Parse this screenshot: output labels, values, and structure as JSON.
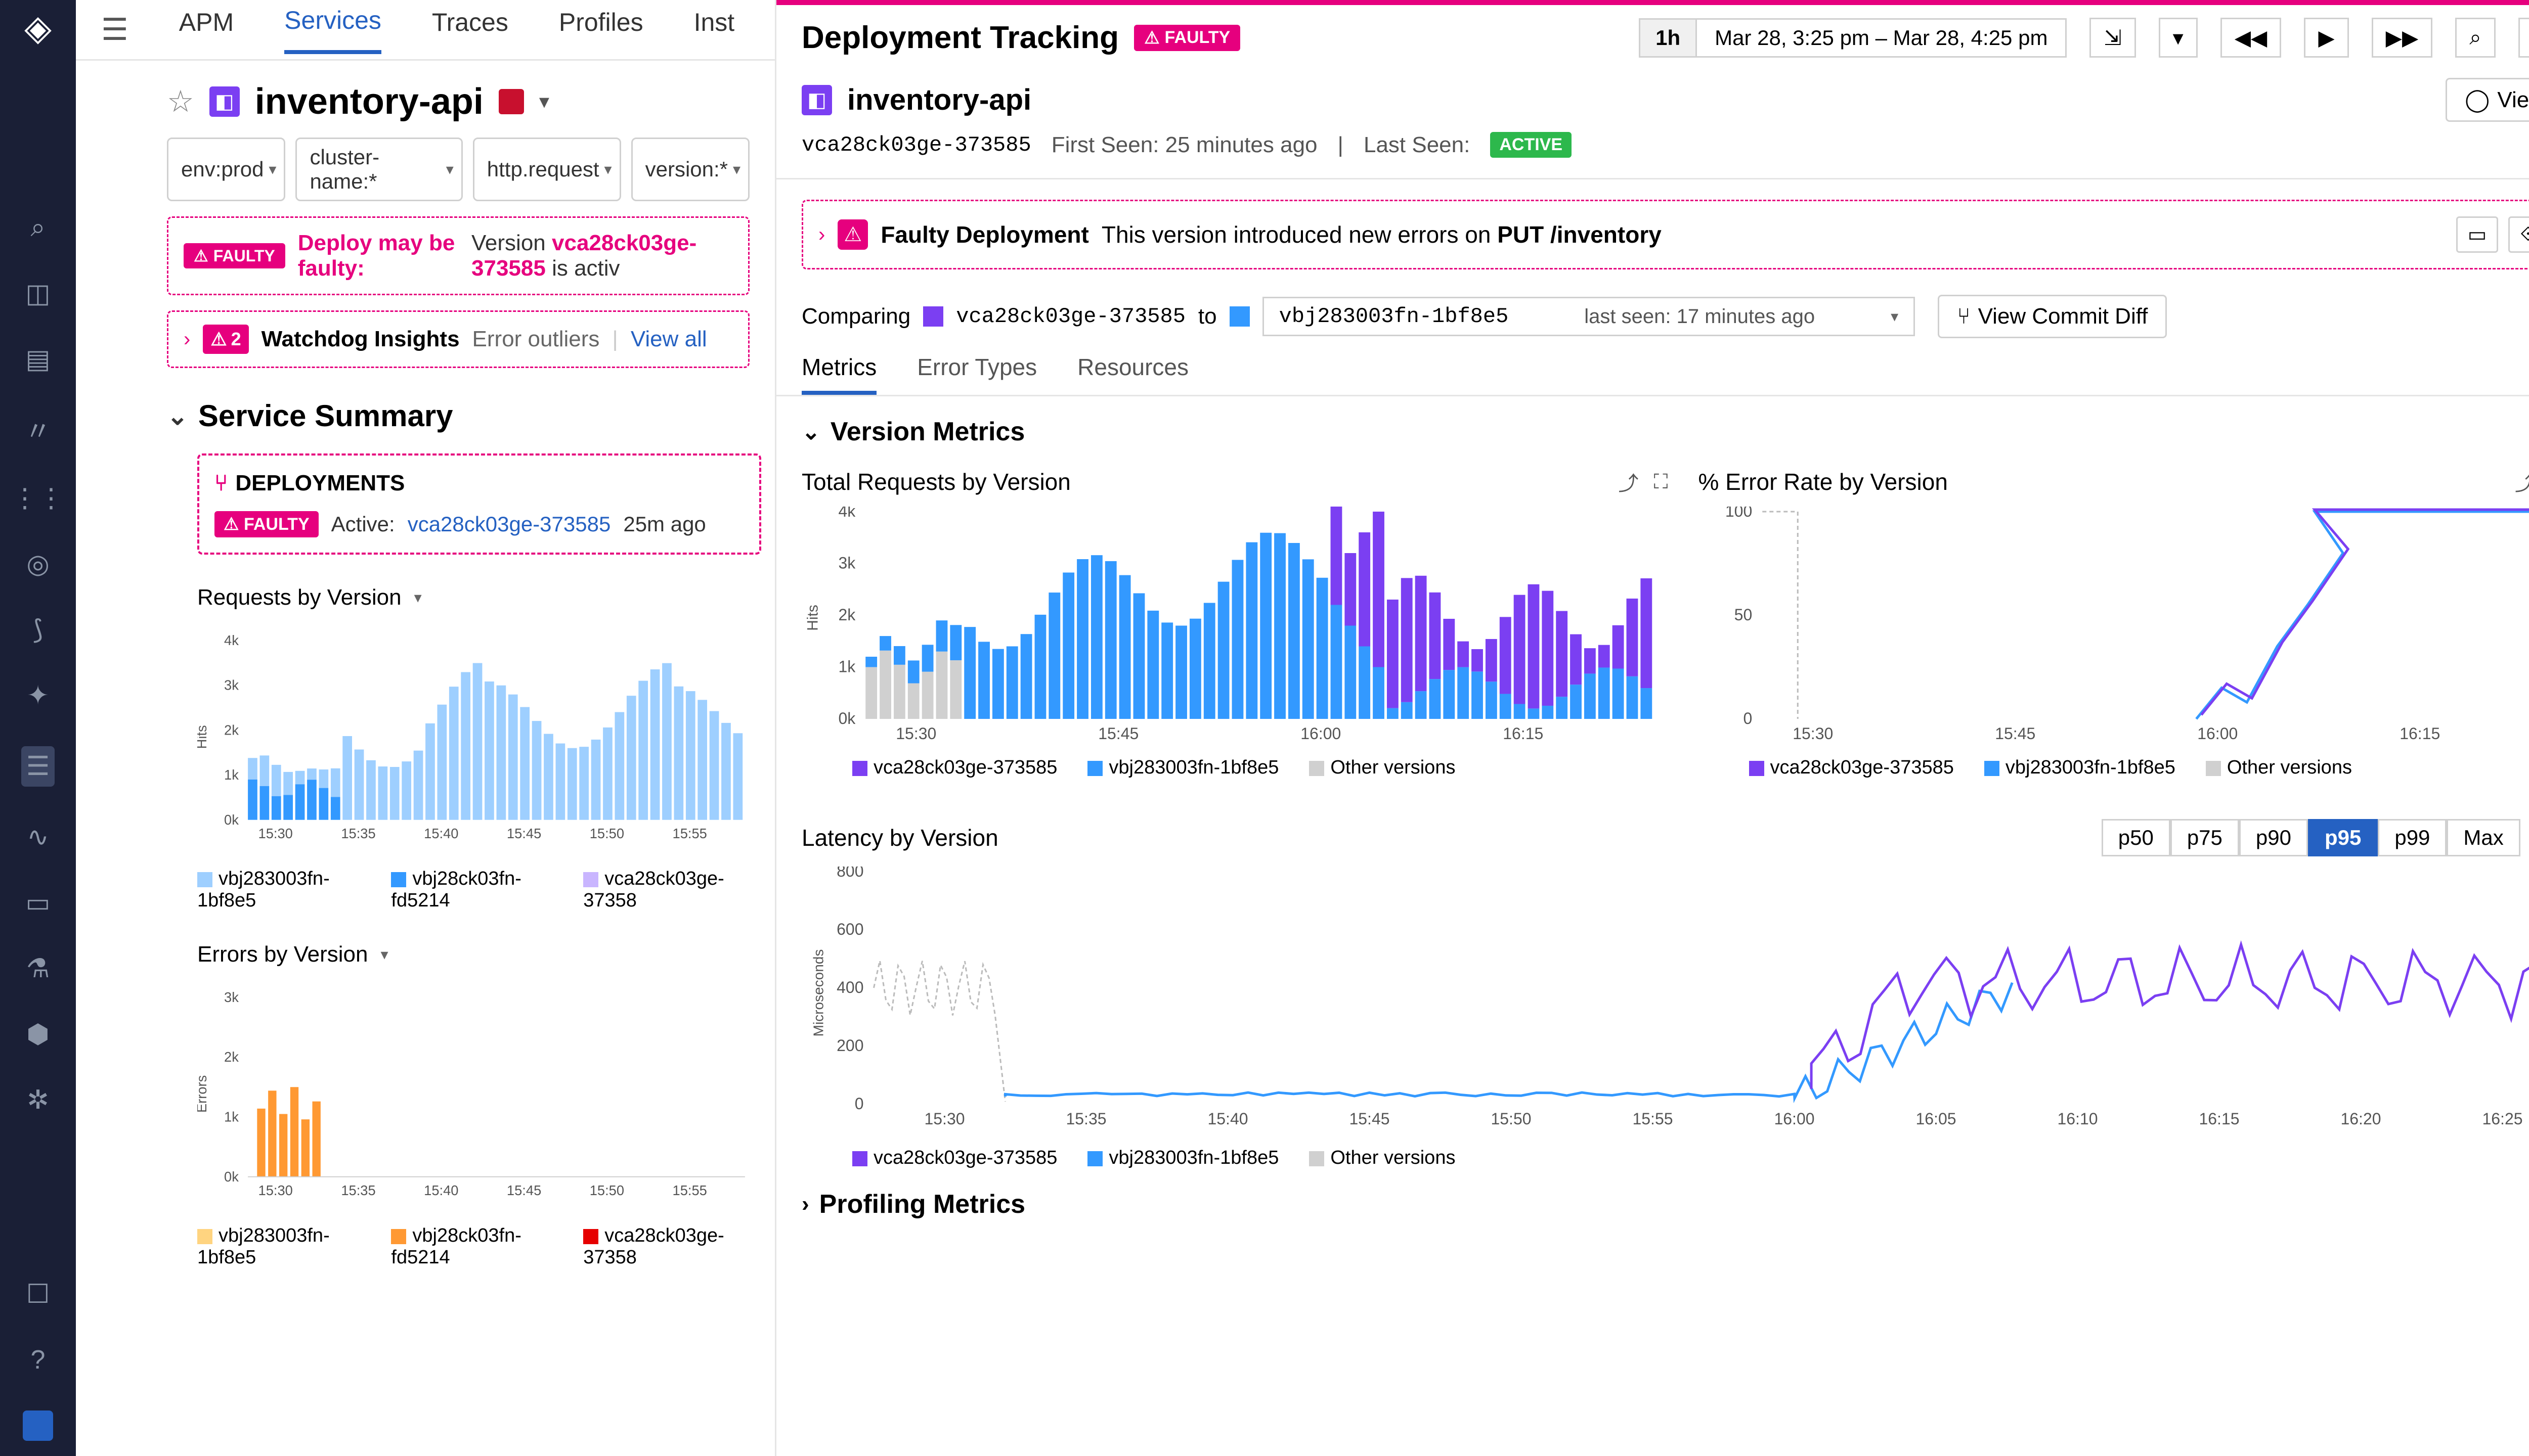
{
  "nav": {
    "apm": "APM",
    "services": "Services",
    "traces": "Traces",
    "profiles": "Profiles",
    "inst": "Inst"
  },
  "service": {
    "name": "inventory-api"
  },
  "filters": [
    "env:prod",
    "cluster-name:*",
    "http.request",
    "version:*"
  ],
  "faulty_banner": {
    "badge": "FAULTY",
    "title": "Deploy may be faulty:",
    "msg_pre": "Version ",
    "version": "vca28ck03ge-373585",
    "msg_post": " is activ"
  },
  "insights": {
    "count": "2",
    "title": "Watchdog Insights",
    "sub": "Error outliers",
    "link": "View all"
  },
  "summary_title": "Service Summary",
  "deploy_card": {
    "title": "DEPLOYMENTS",
    "badge": "FAULTY",
    "active_label": "Active:",
    "version": "vca28ck03ge-373585",
    "ago": "25m ago"
  },
  "mini1": {
    "title": "Requests by Version",
    "ylab": "Hits",
    "yticks": [
      "4k",
      "3k",
      "2k",
      "1k",
      "0k"
    ],
    "xticks": [
      "15:30",
      "15:35",
      "15:40",
      "15:45",
      "15:50",
      "15:55"
    ],
    "legend": [
      {
        "c": "#9ecfff",
        "t": "vbj283003fn-1bf8e5"
      },
      {
        "c": "#3399ff",
        "t": "vbj28ck03fn-fd5214"
      },
      {
        "c": "#c9b5ff",
        "t": "vca28ck03ge-37358"
      }
    ]
  },
  "mini2": {
    "title": "Errors by Version",
    "ylab": "Errors",
    "yticks": [
      "3k",
      "2k",
      "1k",
      "0k"
    ],
    "xticks": [
      "15:30",
      "15:35",
      "15:40",
      "15:45",
      "15:50",
      "15:55"
    ],
    "legend": [
      {
        "c": "#ffd480",
        "t": "vbj283003fn-1bf8e5"
      },
      {
        "c": "#ff9933",
        "t": "vbj28ck03fn-fd5214"
      },
      {
        "c": "#e60000",
        "t": "vca28ck03ge-37358"
      }
    ]
  },
  "panel": {
    "title": "Deployment Tracking",
    "badge": "FAULTY",
    "time_btn": "1h",
    "time_range": "Mar 28, 3:25 pm – Mar 28, 4:25 pm",
    "service": "inventory-api",
    "view": "View",
    "version": "vca28ck03ge-373585",
    "first_seen": "First Seen: 25 minutes ago",
    "last_seen_lbl": "Last Seen:",
    "active": "ACTIVE",
    "faulty": {
      "title": "Faulty Deployment",
      "msg": "This version introduced new errors on ",
      "endpoint": "PUT /inventory"
    },
    "compare": {
      "lbl": "Comparing",
      "v1": "vca28ck03ge-373585",
      "to": "to",
      "v2": "vbj283003fn-1bf8e5",
      "last_seen": "last seen: 17 minutes ago",
      "commit": "View Commit Diff"
    },
    "tabs": [
      "Metrics",
      "Error Types",
      "Resources"
    ],
    "section": "Version Metrics",
    "chart1": {
      "title": "Total Requests by Version",
      "ylab": "Hits",
      "yticks": [
        "4k",
        "3k",
        "2k",
        "1k",
        "0k"
      ],
      "xticks": [
        "15:30",
        "15:45",
        "16:00",
        "16:15"
      ]
    },
    "chart2": {
      "title": "% Error Rate by Version",
      "yticks": [
        "100",
        "50",
        "0"
      ],
      "xticks": [
        "15:30",
        "15:45",
        "16:00",
        "16:15"
      ]
    },
    "legend": [
      {
        "c": "#7b3ff2",
        "t": "vca28ck03ge-373585"
      },
      {
        "c": "#3399ff",
        "t": "vbj283003fn-1bf8e5"
      },
      {
        "c": "#d0d0d0",
        "t": "Other versions"
      }
    ],
    "latency": {
      "title": "Latency by Version",
      "ylab": "Microseconds",
      "pcts": [
        "p50",
        "p75",
        "p90",
        "p95",
        "p99",
        "Max"
      ],
      "active": "p95",
      "yticks": [
        "800",
        "600",
        "400",
        "200",
        "0"
      ],
      "xticks": [
        "15:30",
        "15:35",
        "15:40",
        "15:45",
        "15:50",
        "15:55",
        "16:00",
        "16:05",
        "16:10",
        "16:15",
        "16:20",
        "16:25"
      ]
    },
    "profiling": "Profiling Metrics"
  },
  "colors": {
    "purple": "#7b3ff2",
    "blue": "#3399ff",
    "lightblue": "#9ecfff",
    "grey": "#d0d0d0",
    "pink": "#e6007e",
    "orange": "#ff9933"
  }
}
